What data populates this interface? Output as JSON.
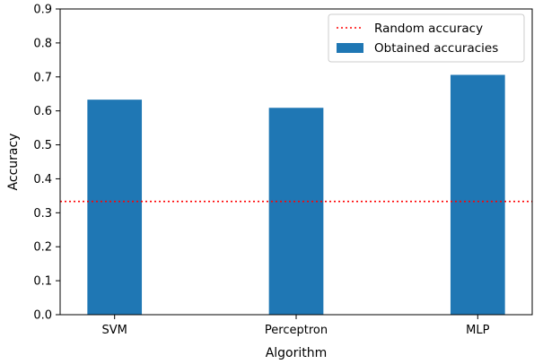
{
  "chart_data": {
    "type": "bar",
    "categories": [
      "SVM",
      "Perceptron",
      "MLP"
    ],
    "series": [
      {
        "name": "Obtained accuracies",
        "values": [
          0.633,
          0.609,
          0.706
        ]
      }
    ],
    "reference_line": {
      "name": "Random accuracy",
      "value": 0.3333,
      "style": "dotted",
      "color": "#ff0000"
    },
    "xlabel": "Algorithm",
    "ylabel": "Accuracy",
    "ylim": [
      0,
      0.9
    ],
    "yticks": [
      "0.0",
      "0.1",
      "0.2",
      "0.3",
      "0.4",
      "0.5",
      "0.6",
      "0.7",
      "0.8",
      "0.9"
    ],
    "grid": false,
    "legend_position": "top-right",
    "bar_color": "#1f77b4"
  }
}
